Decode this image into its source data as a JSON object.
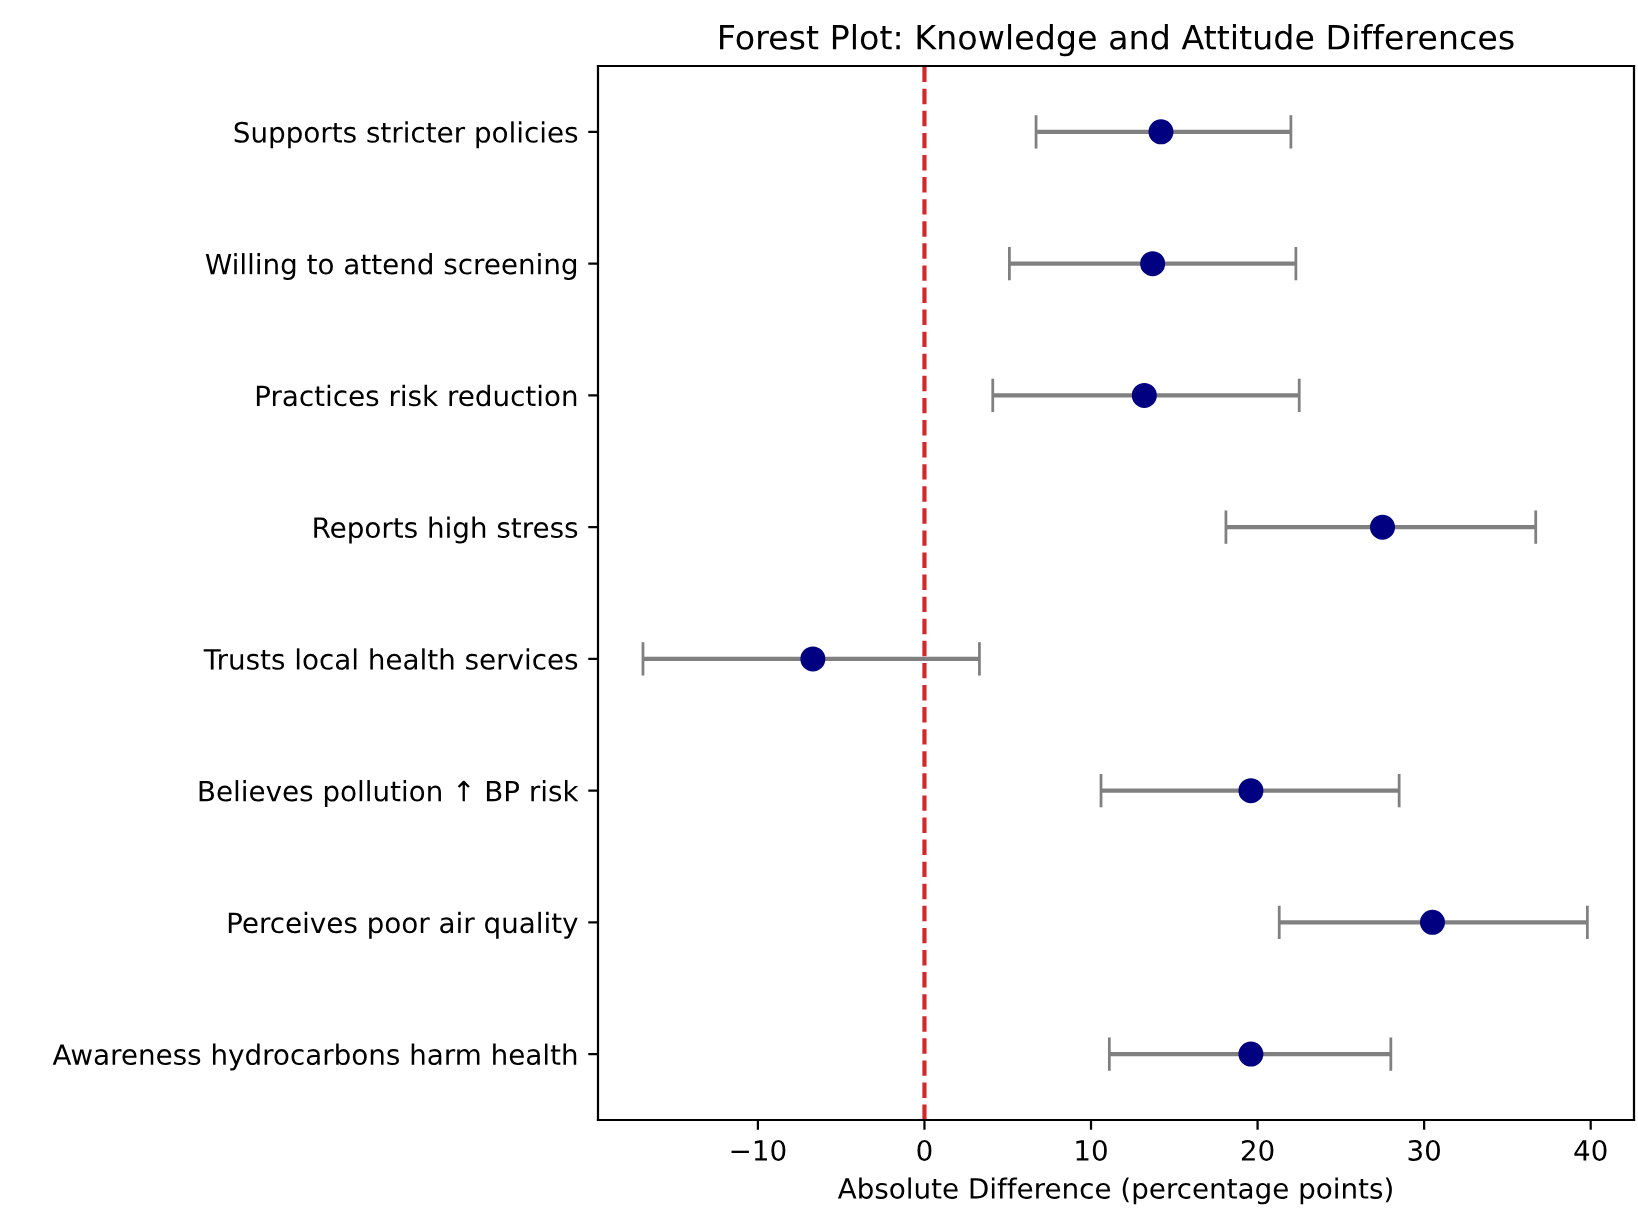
{
  "chart_data": {
    "type": "scatter",
    "orientation": "horizontal",
    "title": "Forest Plot: Knowledge and Attitude Differences",
    "xlabel": "Absolute Difference (percentage points)",
    "categories": [
      "Supports stricter policies",
      "Willing to attend screening",
      "Practices risk reduction",
      "Reports high stress",
      "Trusts local health services",
      "Believes pollution ↑ BP risk",
      "Perceives poor air quality",
      "Awareness hydrocarbons harm health"
    ],
    "series": [
      {
        "color": "#000080",
        "values": [
          14.2,
          13.7,
          13.2,
          27.5,
          -6.7,
          19.6,
          30.5,
          19.6
        ],
        "errors": [
          [
            6.7,
            22.0
          ],
          [
            5.1,
            22.3
          ],
          [
            4.1,
            22.5
          ],
          [
            18.1,
            36.7
          ],
          [
            -16.9,
            3.3
          ],
          [
            10.6,
            28.5
          ],
          [
            21.3,
            39.8
          ],
          [
            11.1,
            28.0
          ]
        ]
      }
    ],
    "xlim": [
      -19.6,
      42.6
    ],
    "xticks": [
      {
        "value": -10,
        "label": "−10"
      },
      0,
      10,
      20,
      30,
      40
    ],
    "ref_lines": [
      {
        "axis": "x",
        "value": 0,
        "color": "#d62728",
        "line_style": "dashed"
      }
    ],
    "marker": "circle",
    "grid": false,
    "legend": false
  }
}
